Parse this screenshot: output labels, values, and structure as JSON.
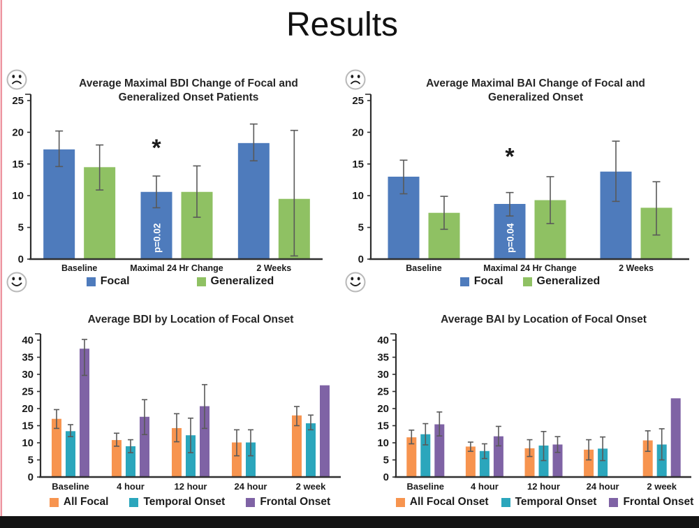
{
  "page": {
    "title": "Results"
  },
  "colors": {
    "focal_blue": "#4E7BBC",
    "generalized_green": "#8FC163",
    "all_focal_orange": "#F7944F",
    "temporal_teal": "#2BA6BC",
    "frontal_purple": "#7F63A5",
    "error_bar": "#595959",
    "axis": "#2F2F2F",
    "tick_text": "#1A1A1A",
    "title_text": "#262626",
    "p_label_text": "#FFFFFF"
  },
  "icons": {
    "top_left_of_upper_charts": "sad-face-icon",
    "bottom_left_of_upper_charts": "happy-face-icon"
  },
  "chart_data": [
    {
      "type": "bar",
      "title": "Average Maximal BDI Change of Focal and Generalized Onset Patients",
      "categories": [
        "Baseline",
        "Maximal 24 Hr Change",
        "2 Weeks"
      ],
      "series": [
        {
          "name": "Focal",
          "color_key": "focal_blue",
          "values": [
            17.3,
            10.6,
            18.3
          ],
          "err_low": [
            14.6,
            8.1,
            15.5
          ],
          "err_high": [
            20.2,
            13.1,
            21.3
          ]
        },
        {
          "name": "Generalized",
          "color_key": "generalized_green",
          "values": [
            14.5,
            10.6,
            9.5
          ],
          "err_low": [
            10.9,
            6.6,
            0.5
          ],
          "err_high": [
            18.0,
            14.7,
            20.3
          ]
        }
      ],
      "ylim": [
        0,
        25
      ],
      "ytick_step": 5,
      "grid": false,
      "legend_position": "bottom",
      "annotations": [
        {
          "kind": "star",
          "text": "*",
          "series": 0,
          "category": 1,
          "y": 16.3
        },
        {
          "kind": "bar-label",
          "text": "p=0.02",
          "series": 0,
          "category": 1
        }
      ],
      "emoji_top": "sad",
      "emoji_bottom": "happy"
    },
    {
      "type": "bar",
      "title": "Average Maximal BAI Change of Focal and Generalized Onset",
      "categories": [
        "Baseline",
        "Maximal 24 Hr Change",
        "2 Weeks"
      ],
      "series": [
        {
          "name": "Focal",
          "color_key": "focal_blue",
          "values": [
            13.0,
            8.7,
            13.8
          ],
          "err_low": [
            10.3,
            6.8,
            9.1
          ],
          "err_high": [
            15.6,
            10.5,
            18.6
          ]
        },
        {
          "name": "Generalized",
          "color_key": "generalized_green",
          "values": [
            7.3,
            9.3,
            8.1
          ],
          "err_low": [
            4.7,
            5.6,
            3.8
          ],
          "err_high": [
            9.9,
            13.0,
            12.2
          ]
        }
      ],
      "ylim": [
        0,
        25
      ],
      "ytick_step": 5,
      "grid": false,
      "legend_position": "bottom",
      "annotations": [
        {
          "kind": "star",
          "text": "*",
          "series": 0,
          "category": 1,
          "y": 14.9
        },
        {
          "kind": "bar-label",
          "text": "p=0.04",
          "series": 0,
          "category": 1
        }
      ],
      "emoji_top": "sad",
      "emoji_bottom": "happy"
    },
    {
      "type": "bar",
      "title": "Average BDI by Location of Focal Onset",
      "categories": [
        "Baseline",
        "4 hour",
        "12 hour",
        "24 hour",
        "2 week"
      ],
      "series": [
        {
          "name": "All Focal",
          "color_key": "all_focal_orange",
          "values": [
            17.0,
            10.8,
            14.3,
            10.1,
            18.0
          ],
          "err_low": [
            14.2,
            9.0,
            10.3,
            6.2,
            15.0
          ],
          "err_high": [
            19.7,
            12.8,
            18.5,
            13.8,
            20.6
          ]
        },
        {
          "name": "Temporal Onset",
          "color_key": "temporal_teal",
          "values": [
            13.4,
            9.0,
            12.2,
            10.1,
            15.7
          ],
          "err_low": [
            11.8,
            7.1,
            7.1,
            6.2,
            13.8
          ],
          "err_high": [
            15.3,
            10.9,
            17.2,
            13.8,
            18.1
          ]
        },
        {
          "name": "Frontal Onset",
          "color_key": "frontal_purple",
          "values": [
            37.5,
            17.6,
            20.7,
            null,
            26.8
          ],
          "err_low": [
            29.7,
            12.4,
            14.2,
            null,
            null
          ],
          "err_high": [
            40.2,
            22.6,
            27.0,
            null,
            null
          ]
        }
      ],
      "ylim": [
        0,
        40
      ],
      "ytick_step": 5,
      "grid": false,
      "legend_position": "bottom",
      "annotations": []
    },
    {
      "type": "bar",
      "title": "Average BAI by Location of Focal Onset",
      "categories": [
        "Baseline",
        "4 hour",
        "12 hour",
        "24 hour",
        "2 week"
      ],
      "series": [
        {
          "name": "All Focal Onset",
          "color_key": "all_focal_orange",
          "values": [
            11.6,
            8.9,
            8.4,
            8.0,
            10.7
          ],
          "err_low": [
            9.7,
            7.5,
            6.0,
            5.0,
            7.5
          ],
          "err_high": [
            13.7,
            10.2,
            10.9,
            10.9,
            13.5
          ]
        },
        {
          "name": "Temporal Onset",
          "color_key": "temporal_teal",
          "values": [
            12.5,
            7.6,
            9.2,
            8.3,
            9.5
          ],
          "err_low": [
            9.4,
            5.4,
            4.8,
            4.8,
            5.0
          ],
          "err_high": [
            15.6,
            9.7,
            13.3,
            11.7,
            14.1
          ]
        },
        {
          "name": "Frontal Onset",
          "color_key": "frontal_purple",
          "values": [
            15.4,
            11.9,
            9.5,
            null,
            23.0
          ],
          "err_low": [
            12.0,
            9.1,
            7.2,
            null,
            null
          ],
          "err_high": [
            19.0,
            14.8,
            11.8,
            null,
            null
          ]
        }
      ],
      "ylim": [
        0,
        40
      ],
      "ytick_step": 5,
      "grid": false,
      "legend_position": "bottom",
      "annotations": []
    }
  ]
}
